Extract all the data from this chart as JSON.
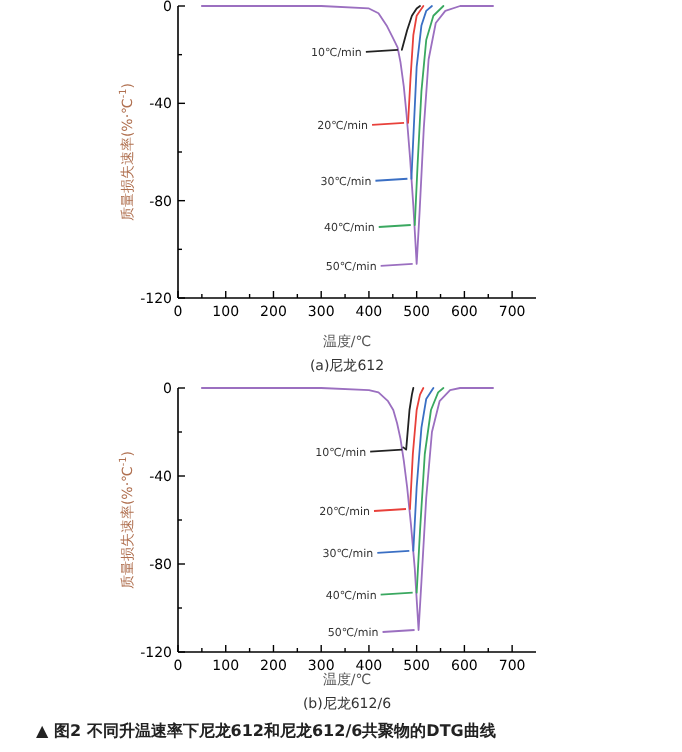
{
  "chart_data": [
    {
      "type": "line",
      "legend": "center",
      "subtitle": "(a)尼龙612",
      "xlabel": "温度/℃",
      "ylabel": "质量损失速率(%·℃$^{-1}$)",
      "xlim": [
        0,
        750
      ],
      "ylim": [
        -120,
        0
      ],
      "xticks": [
        0,
        {
          "value": 50,
          "label": null
        },
        100,
        {
          "value": 150,
          "label": null
        },
        200,
        {
          "value": 250,
          "label": null
        },
        300,
        {
          "value": 350,
          "label": null
        },
        400,
        {
          "value": 450,
          "label": null
        },
        500,
        {
          "value": 550,
          "label": null
        },
        600,
        {
          "value": 650,
          "label": null
        },
        700
      ],
      "yticks": [
        0,
        {
          "value": -20,
          "label": null
        },
        -40,
        {
          "value": -60,
          "label": null
        },
        -80,
        {
          "value": -100,
          "label": null
        },
        -120
      ],
      "series": [
        {
          "name": "10℃/min",
          "color": "#222222",
          "x": [
            469,
            480,
            490,
            500,
            507
          ],
          "values": [
            -18,
            -10,
            -4,
            -1,
            0
          ]
        },
        {
          "name": "20℃/min",
          "color": "#e8403a",
          "x": [
            482,
            487,
            493,
            500,
            514
          ],
          "values": [
            -48,
            -30,
            -12,
            -4,
            0
          ]
        },
        {
          "name": "30℃/min",
          "color": "#3a6fc4",
          "x": [
            489,
            494,
            500,
            510,
            520,
            532
          ],
          "values": [
            -71,
            -50,
            -25,
            -8,
            -2,
            0
          ]
        },
        {
          "name": "40℃/min",
          "color": "#3aa860",
          "x": [
            496,
            502,
            510,
            520,
            535,
            556
          ],
          "values": [
            -90,
            -65,
            -35,
            -14,
            -4,
            0
          ]
        },
        {
          "name": "50℃/min",
          "color": "#9b6fc0",
          "x": [
            50,
            300,
            400,
            420,
            437,
            450,
            460,
            466,
            473,
            479,
            486,
            493,
            500,
            506,
            515,
            525,
            540,
            560,
            591,
            660
          ],
          "values": [
            0,
            0,
            -1,
            -3,
            -8,
            -13,
            -17,
            -23,
            -33,
            -45,
            -62,
            -82,
            -106,
            -85,
            -50,
            -22,
            -7,
            -2,
            0,
            0
          ]
        }
      ]
    },
    {
      "type": "line",
      "legend": "center",
      "subtitle": "(b)尼龙612/6",
      "xlabel": "温度/℃",
      "ylabel": "质量损失速率(%·℃$^{-1}$)",
      "xlim": [
        0,
        750
      ],
      "ylim": [
        -120,
        0
      ],
      "xticks": [
        0,
        {
          "value": 50,
          "label": null
        },
        100,
        {
          "value": 150,
          "label": null
        },
        200,
        {
          "value": 250,
          "label": null
        },
        300,
        {
          "value": 350,
          "label": null
        },
        400,
        {
          "value": 450,
          "label": null
        },
        500,
        {
          "value": 550,
          "label": null
        },
        600,
        {
          "value": 650,
          "label": null
        },
        700
      ],
      "yticks": [
        0,
        {
          "value": -20,
          "label": null
        },
        -40,
        {
          "value": -60,
          "label": null
        },
        -80,
        {
          "value": -100,
          "label": null
        },
        -120
      ],
      "annotations": [
        "▲ 图2 不同升温速率下尼龙612和尼龙612/6共聚物的DTG曲线"
      ],
      "series": [
        {
          "name": "10℃/min",
          "color": "#222222",
          "x": [
            472,
            478,
            485,
            490,
            493
          ],
          "values": [
            -27,
            -28,
            -10,
            -3,
            0
          ]
        },
        {
          "name": "20℃/min",
          "color": "#e8403a",
          "x": [
            486,
            492,
            500,
            507,
            514
          ],
          "values": [
            -55,
            -30,
            -10,
            -3,
            0
          ]
        },
        {
          "name": "30℃/min",
          "color": "#3a6fc4",
          "x": [
            493,
            500,
            510,
            520,
            535
          ],
          "values": [
            -74,
            -45,
            -18,
            -5,
            0
          ]
        },
        {
          "name": "40℃/min",
          "color": "#3aa860",
          "x": [
            500,
            507,
            517,
            530,
            545,
            556
          ],
          "values": [
            -93,
            -65,
            -30,
            -10,
            -2,
            0
          ]
        },
        {
          "name": "50℃/min",
          "color": "#9b6fc0",
          "x": [
            50,
            300,
            400,
            420,
            440,
            451,
            459,
            466,
            473,
            480,
            488,
            496,
            504,
            510,
            520,
            532,
            548,
            570,
            591,
            660
          ],
          "values": [
            0,
            0,
            -1,
            -2,
            -6,
            -10,
            -16,
            -23,
            -33,
            -45,
            -62,
            -82,
            -110,
            -88,
            -50,
            -20,
            -6,
            -1,
            0,
            0
          ]
        }
      ]
    }
  ]
}
